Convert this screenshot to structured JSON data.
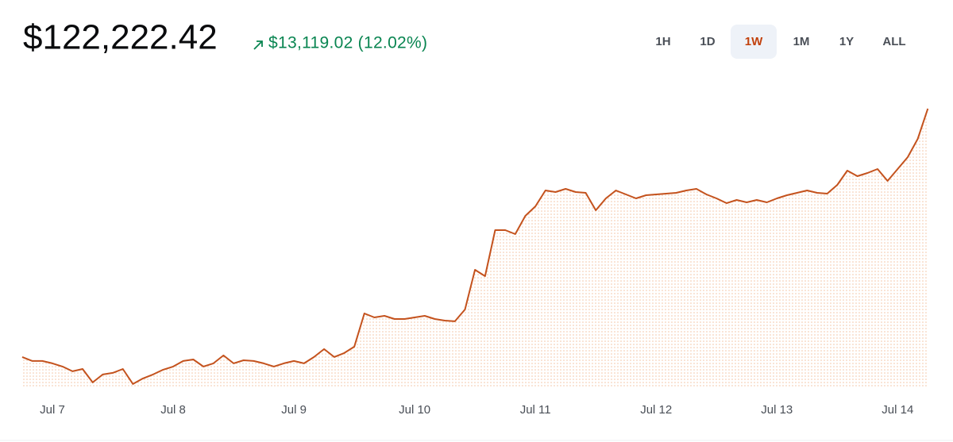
{
  "header": {
    "price": "$122,222.42",
    "change": "$13,119.02 (12.02%)"
  },
  "ranges": [
    "1H",
    "1D",
    "1W",
    "1M",
    "1Y",
    "ALL"
  ],
  "selected_range": "1W",
  "chart_data": {
    "type": "line",
    "color": "#c4521d",
    "fill": "#f2c3a3",
    "categories": [
      null,
      null,
      null,
      "Jul 7",
      null,
      null,
      null,
      null,
      null,
      null,
      null,
      null,
      null,
      null,
      null,
      "Jul 8",
      null,
      null,
      null,
      null,
      null,
      null,
      null,
      null,
      null,
      null,
      null,
      "Jul 9",
      null,
      null,
      null,
      null,
      null,
      null,
      null,
      null,
      null,
      null,
      null,
      "Jul 10",
      null,
      null,
      null,
      null,
      null,
      null,
      null,
      null,
      null,
      null,
      null,
      "Jul 11",
      null,
      null,
      null,
      null,
      null,
      null,
      null,
      null,
      null,
      null,
      null,
      "Jul 12",
      null,
      null,
      null,
      null,
      null,
      null,
      null,
      null,
      null,
      null,
      null,
      "Jul 13",
      null,
      null,
      null,
      null,
      null,
      null,
      null,
      null,
      null,
      null,
      null,
      "Jul 14",
      null,
      null,
      null
    ],
    "values": [
      109103.4,
      108894,
      108894,
      108768,
      108600,
      108349,
      108474,
      107762,
      108181,
      108265,
      108474,
      107678,
      107972,
      108181,
      108433,
      108600,
      108894,
      108977,
      108600,
      108768,
      109187,
      108768,
      108935,
      108894,
      108768,
      108600,
      108768,
      108894,
      108768,
      109103,
      109522,
      109103,
      109313,
      109648,
      111408,
      111198,
      111282,
      111114,
      111114,
      111198,
      111282,
      111114,
      111030,
      110989,
      111617,
      113712,
      113377,
      115807,
      115807,
      115598,
      116561,
      117064,
      117902,
      117818,
      117986,
      117818,
      117776,
      116855,
      117483,
      117902,
      117693,
      117483,
      117651,
      117693,
      117734,
      117776,
      117902,
      117986,
      117693,
      117483,
      117232,
      117399,
      117274,
      117399,
      117274,
      117483,
      117651,
      117776,
      117902,
      117776,
      117734,
      118195,
      118950,
      118656,
      118824,
      119033,
      118405,
      119033,
      119662,
      120626,
      122222.42
    ],
    "ylim": [
      107550,
      123770
    ]
  }
}
